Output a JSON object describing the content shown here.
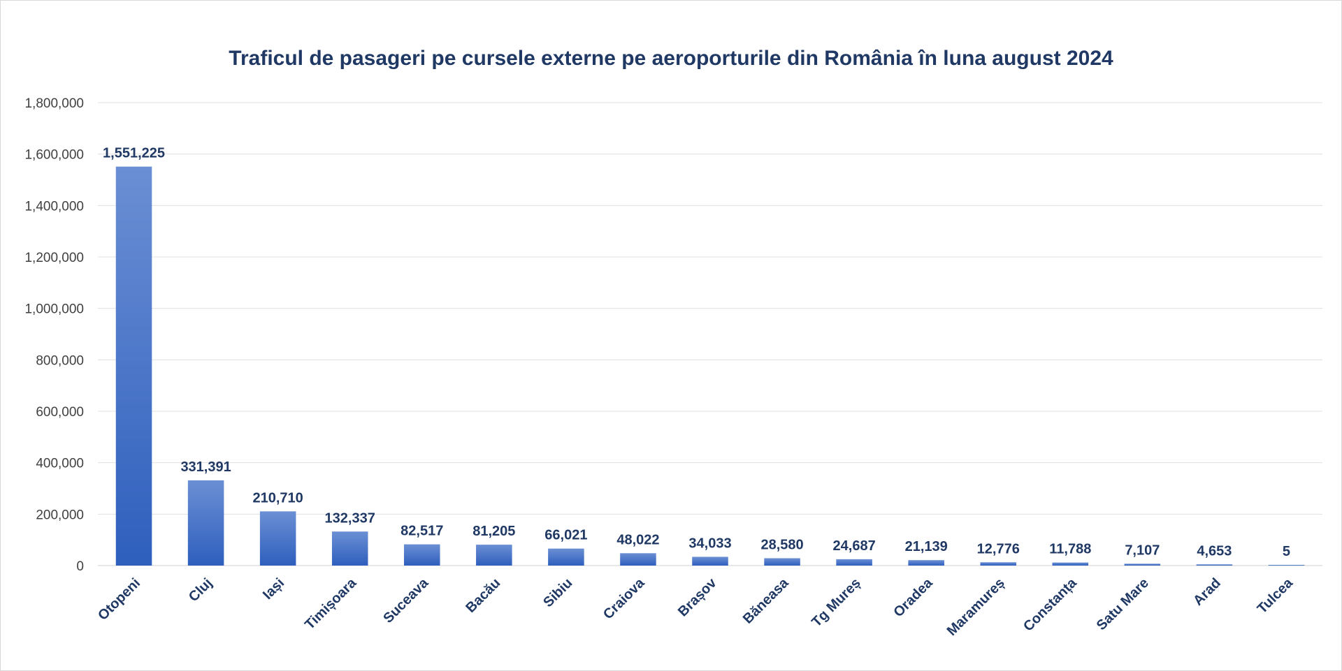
{
  "chart_data": {
    "type": "bar",
    "title": "Traficul de pasageri pe cursele externe pe aeroporturile din România în luna august 2024",
    "xlabel": "",
    "ylabel": "",
    "categories": [
      "Otopeni",
      "Cluj",
      "Iași",
      "Timișoara",
      "Suceava",
      "Bacău",
      "Sibiu",
      "Craiova",
      "Brașov",
      "Băneasa",
      "Tg Mureș",
      "Oradea",
      "Maramureș",
      "Constanța",
      "Satu Mare",
      "Arad",
      "Tulcea"
    ],
    "values": [
      1551225,
      331391,
      210710,
      132337,
      82517,
      81205,
      66021,
      48022,
      34033,
      28580,
      24687,
      21139,
      12776,
      11788,
      7107,
      4653,
      5
    ],
    "data_labels": [
      "1,551,225",
      "331,391",
      "210,710",
      "132,337",
      "82,517",
      "81,205",
      "66,021",
      "48,022",
      "34,033",
      "28,580",
      "24,687",
      "21,139",
      "12,776",
      "11,788",
      "7,107",
      "4,653",
      "5"
    ],
    "ylim": [
      0,
      1800000
    ],
    "y_ticks": [
      0,
      200000,
      400000,
      600000,
      800000,
      1000000,
      1200000,
      1400000,
      1600000,
      1800000
    ],
    "y_tick_labels": [
      "0",
      "200,000",
      "400,000",
      "600,000",
      "800,000",
      "1,000,000",
      "1,200,000",
      "1,400,000",
      "1,600,000",
      "1,800,000"
    ],
    "grid": true,
    "legend": "none",
    "colors": {
      "bar_top": "#6b8fd4",
      "bar_bottom": "#2e5fbd",
      "title": "#1f3864",
      "labels": "#1f3864",
      "axis_text": "#404040",
      "grid": "#e0e0e0"
    }
  }
}
